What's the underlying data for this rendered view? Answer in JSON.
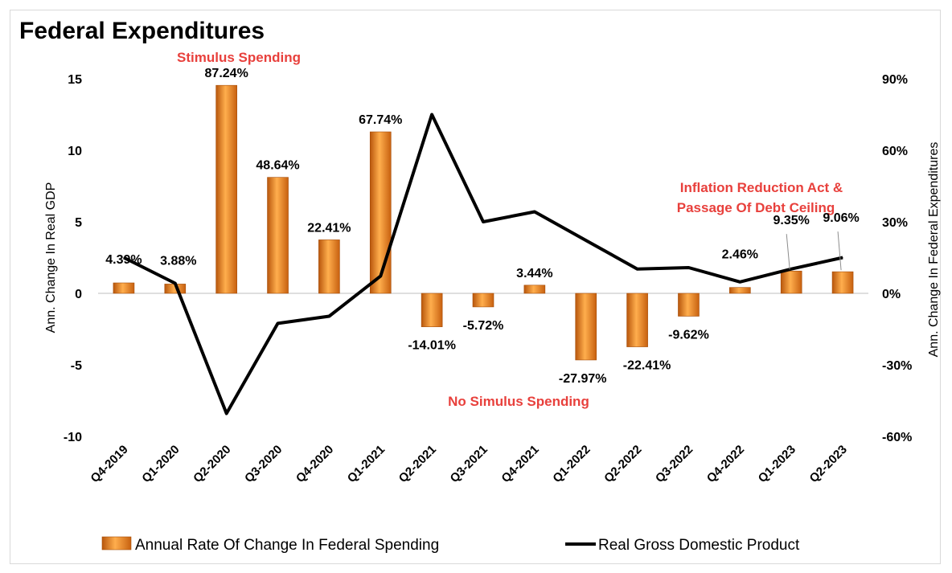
{
  "chart_data": {
    "type": "bar",
    "title": "Federal Expenditures",
    "categories": [
      "Q4-2019",
      "Q1-2020",
      "Q2-2020",
      "Q3-2020",
      "Q4-2020",
      "Q1-2021",
      "Q2-2021",
      "Q3-2021",
      "Q4-2021",
      "Q1-2022",
      "Q2-2022",
      "Q3-2022",
      "Q4-2022",
      "Q1-2023",
      "Q2-2023"
    ],
    "series": [
      {
        "name": "Annual Rate Of Change In Federal Spending",
        "kind": "bar",
        "axis": "left",
        "values": [
          0.73,
          0.65,
          14.54,
          8.11,
          3.74,
          11.29,
          -2.34,
          -0.95,
          0.57,
          -4.66,
          -3.74,
          -1.6,
          0.41,
          1.56,
          1.51
        ],
        "data_labels": [
          "4.39%",
          "3.88%",
          "87.24%",
          "48.64%",
          "22.41%",
          "67.74%",
          "-14.01%",
          "-5.72%",
          "3.44%",
          "-27.97%",
          "-22.41%",
          "-9.62%",
          "2.46%",
          "9.35%",
          "9.06%"
        ],
        "color": "#f28a1f"
      },
      {
        "name": "Real Gross Domestic Product",
        "kind": "line",
        "axis": "left",
        "values": [
          2.5,
          0.7,
          -8.4,
          -2.1,
          -1.6,
          1.2,
          12.5,
          5.0,
          5.7,
          3.7,
          1.7,
          1.8,
          0.8,
          1.7,
          2.5
        ],
        "color": "#000000"
      }
    ],
    "ylabel": "Ann. Change In Real GDP",
    "ylim": [
      -10,
      15
    ],
    "yticks": [
      "-10",
      "-5",
      "0",
      "5",
      "10",
      "15"
    ],
    "y2label": "Ann. Change In Federal Expenditures",
    "y2lim": [
      -60,
      90
    ],
    "y2ticks": [
      "-60%",
      "-30%",
      "0%",
      "30%",
      "60%",
      "90%"
    ],
    "annotations": [
      "Stimulus Spending",
      "No Simulus Spending",
      "Inflation Reduction Act &",
      "Passage Of Debt Ceiling"
    ],
    "legend_position": "bottom",
    "grid": false
  }
}
